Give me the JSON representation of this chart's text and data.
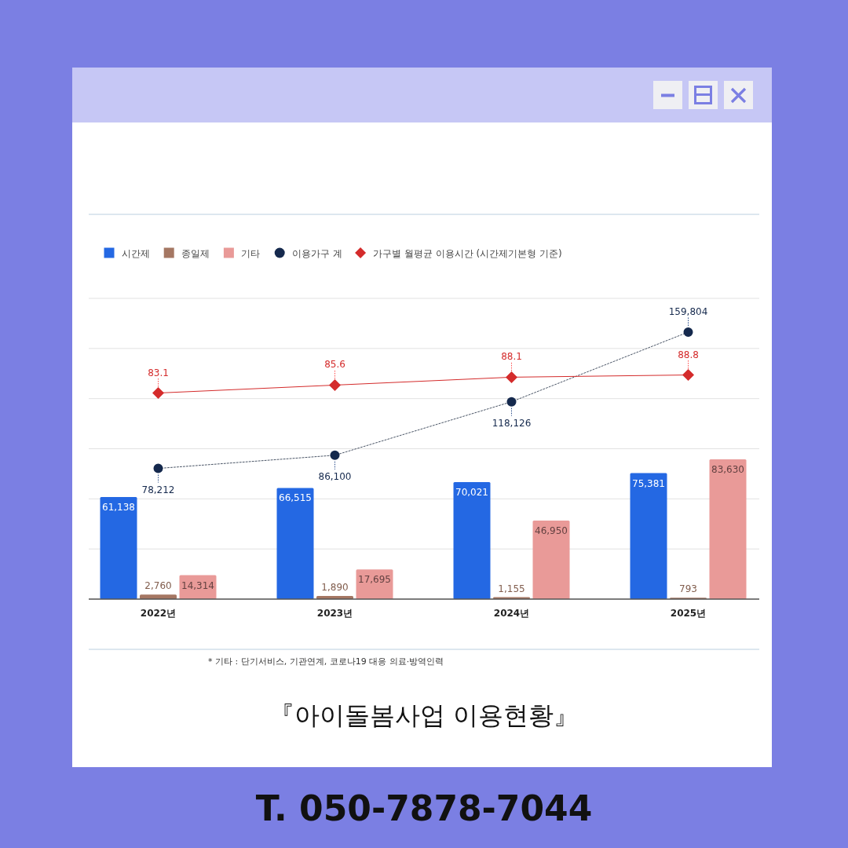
{
  "chart_data": {
    "type": "bar",
    "title": "『아이돌봄사업 이용현황』",
    "categories": [
      "2022년",
      "2023년",
      "2024년",
      "2025년"
    ],
    "series": [
      {
        "name": "시간제",
        "color": "#2468e3",
        "values": [
          61138,
          66515,
          70021,
          75381
        ],
        "value_labels": [
          "61,138",
          "66,515",
          "70,021",
          "75,381"
        ]
      },
      {
        "name": "종일제",
        "color": "#a57763",
        "values": [
          2760,
          1890,
          1155,
          793
        ],
        "value_labels": [
          "2,760",
          "1,890",
          "1,155",
          "793"
        ]
      },
      {
        "name": "기타",
        "color": "#e99a98",
        "values": [
          14314,
          17695,
          46950,
          83630
        ],
        "value_labels": [
          "14,314",
          "17,695",
          "46,950",
          "83,630"
        ]
      },
      {
        "name": "이용가구 계",
        "type": "line",
        "color": "#15294d",
        "values": [
          78212,
          86100,
          118126,
          159804
        ],
        "value_labels": [
          "78,212",
          "86,100",
          "118,126",
          "159,804"
        ],
        "marker": "circle",
        "line_style": "dotted"
      },
      {
        "name": "가구별 월평균 이용시간 (시간제기본형 기준)",
        "type": "line",
        "color": "#d42b2b",
        "values": [
          83.1,
          85.6,
          88.1,
          88.8
        ],
        "value_labels": [
          "83.1",
          "85.6",
          "88.1",
          "88.8"
        ],
        "axis": "y2",
        "marker": "diamond",
        "line_style": "solid"
      }
    ],
    "ylim": [
      0,
      180000
    ],
    "yticks": [
      {
        "value": 0,
        "label": null
      },
      {
        "value": 30000,
        "label": null
      },
      {
        "value": 60000,
        "label": null
      },
      {
        "value": 90000,
        "label": null
      },
      {
        "value": 120000,
        "label": null
      },
      {
        "value": 150000,
        "label": null
      },
      {
        "value": 180000,
        "label": null
      }
    ],
    "y2lim": [
      18,
      113
    ],
    "grid": "y",
    "tick_labels": "x",
    "legend": "top left",
    "annotations": [
      "* 기타 : 단기서비스, 기관연계, 코로나19 대응 의료·방역인력",
      "T. 050-7878-7044"
    ]
  }
}
